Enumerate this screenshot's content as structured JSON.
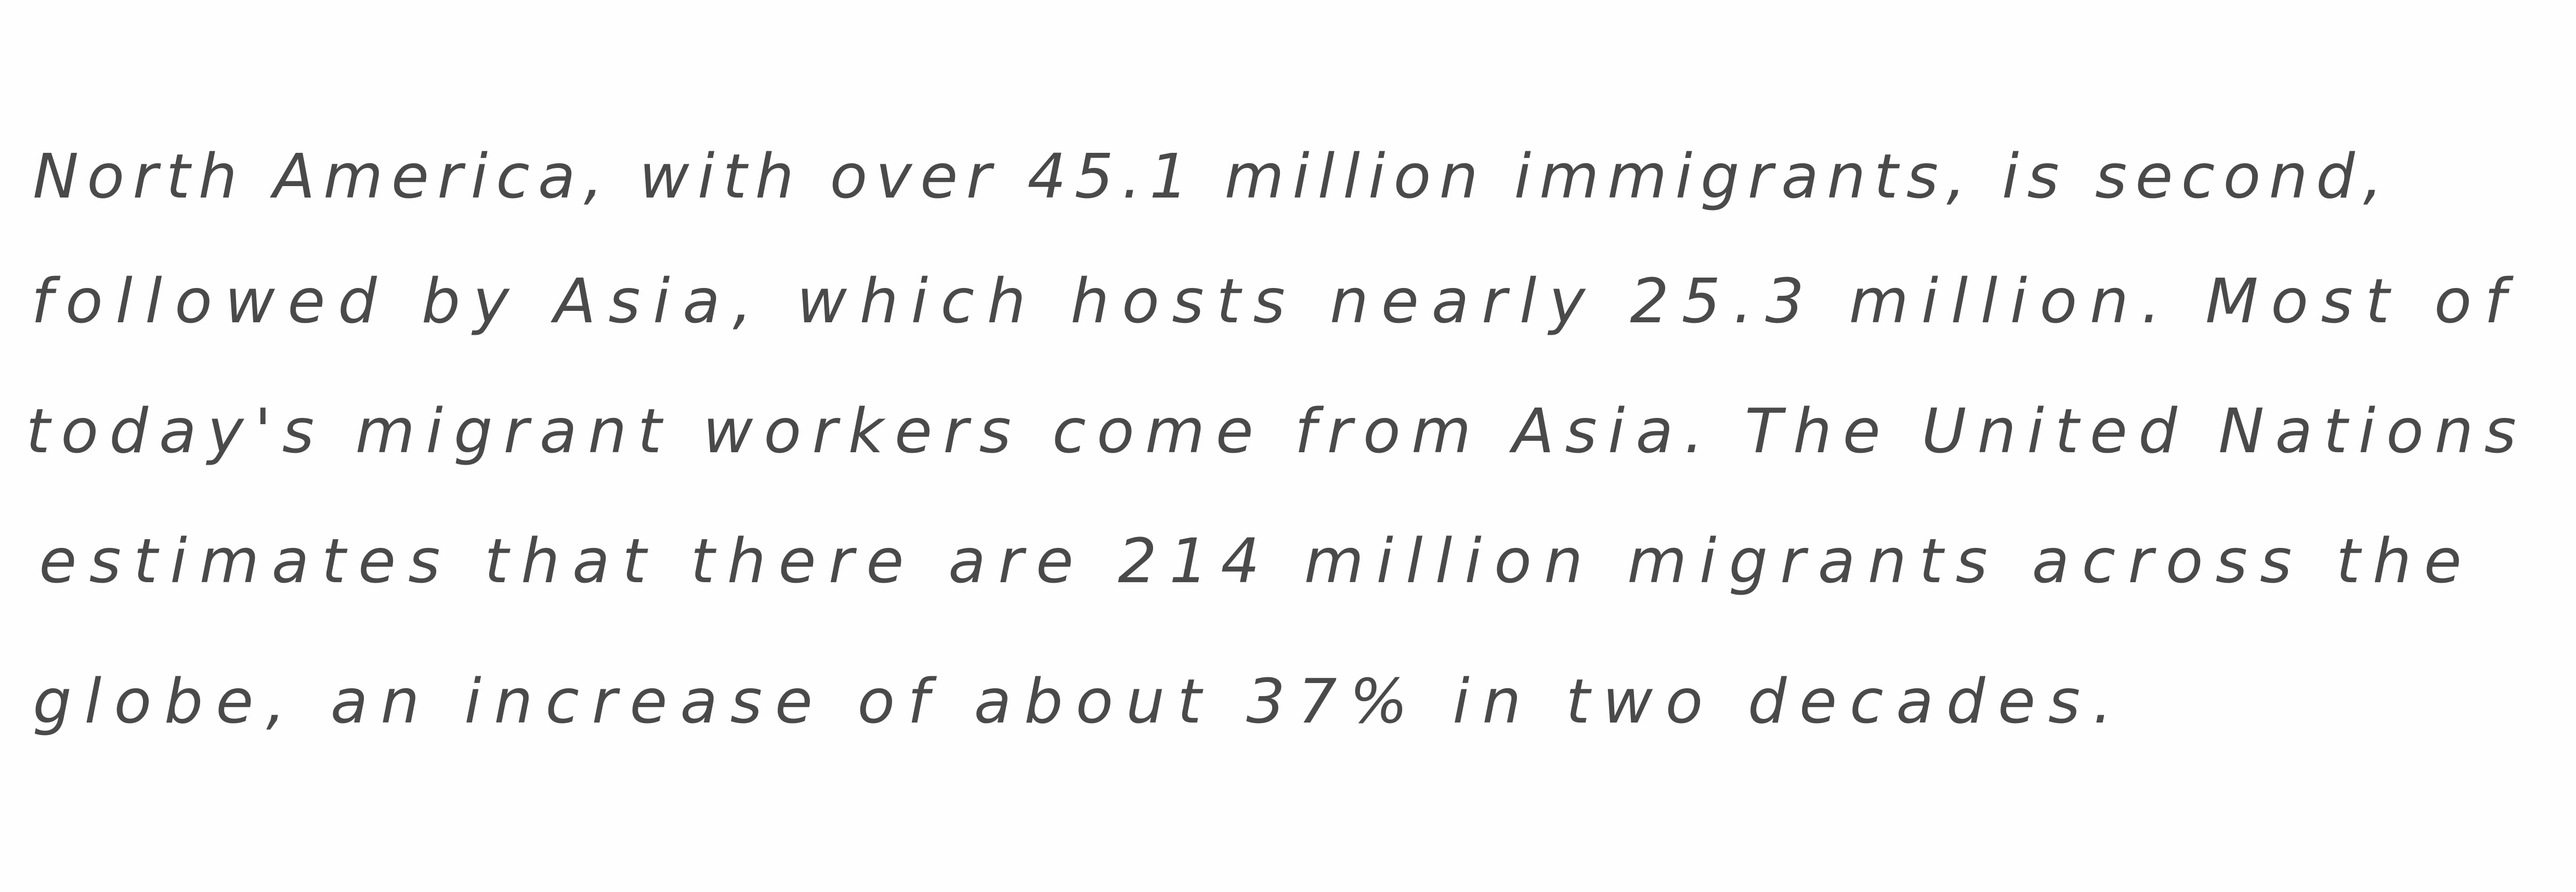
{
  "document": {
    "lines": [
      "North America, with over 45.1 million immigrants, is second,",
      "followed by Asia, which hosts nearly 25.3 million. Most of",
      "today's migrant workers come from Asia. The United Nations",
      "estimates that there are 214 million migrants across the",
      "globe, an increase of about 37% in two decades."
    ]
  }
}
